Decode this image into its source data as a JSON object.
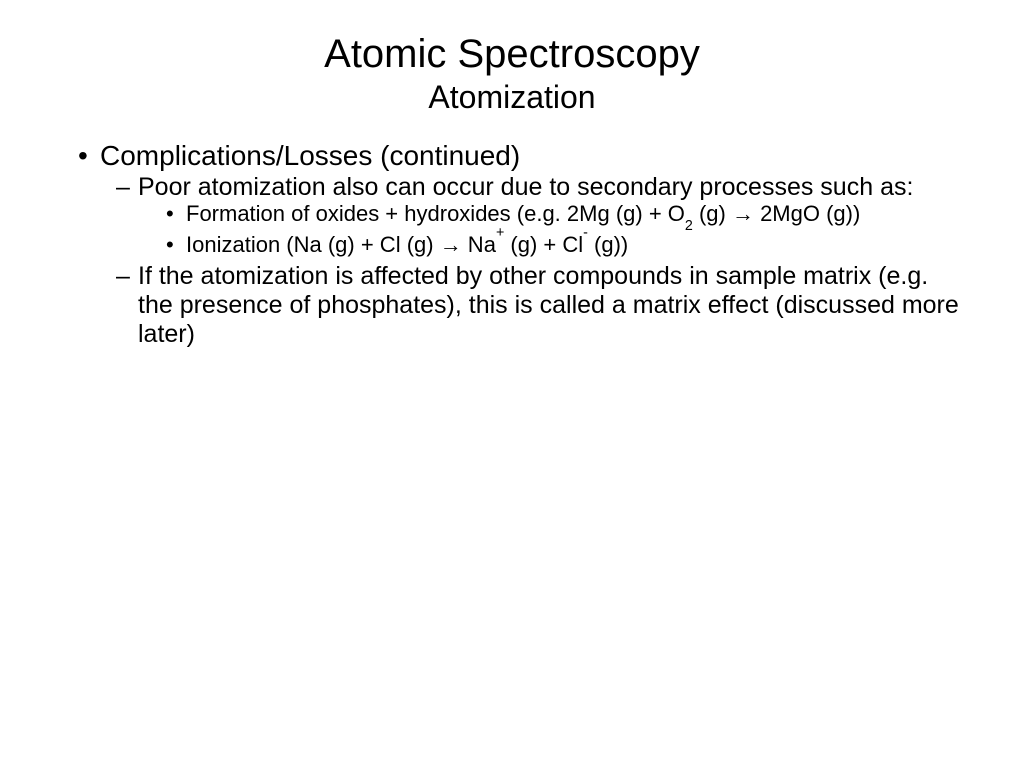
{
  "slide": {
    "title_main": "Atomic Spectroscopy",
    "title_sub": "Atomization",
    "bullets": {
      "l1_0": "Complications/Losses (continued)",
      "l2_0": "Poor atomization also can occur due to secondary processes such as:",
      "l3_0_pre": "Formation of oxides + hydroxides (e.g. 2Mg (g) + O",
      "l3_0_sub": "2",
      "l3_0_post": " (g) → 2MgO (g))",
      "l3_1_a": "Ionization (Na (g) + Cl (g) → Na",
      "l3_1_sup1": "+",
      "l3_1_b": " (g) + Cl",
      "l3_1_sup2": "-",
      "l3_1_c": " (g))",
      "l2_1": "If the atomization is affected by other compounds in sample matrix (e.g. the presence of phosphates), this is called a matrix effect (discussed more later)"
    }
  },
  "style": {
    "background_color": "#ffffff",
    "text_color": "#000000",
    "title_fontsize": 40,
    "subtitle_fontsize": 32,
    "l1_fontsize": 28,
    "l2_fontsize": 25,
    "l3_fontsize": 22,
    "font_family": "Verdana"
  }
}
